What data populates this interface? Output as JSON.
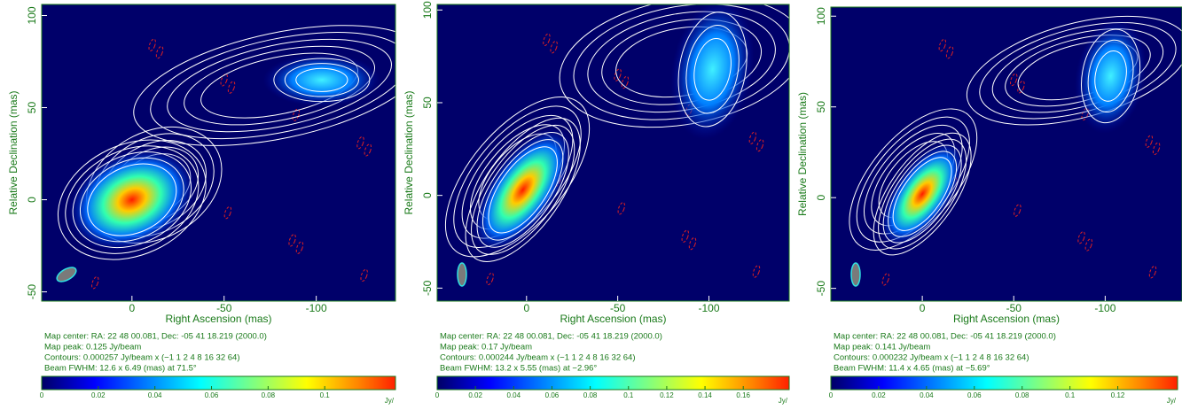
{
  "chart_data": [
    {
      "type": "image",
      "xlabel": "Right Ascension  (mas)",
      "ylabel": "Relative Declination  (mas)",
      "xlim": [
        49,
        -143
      ],
      "ylim": [
        -55,
        106
      ],
      "xticks": [
        0,
        -50,
        -100
      ],
      "yticks": [
        -50,
        0,
        50,
        100
      ],
      "notes": [
        "Map center:  RA: 22 48 00.081,   Dec: -05 41 18.219 (2000.0)",
        "Map peak: 0.125 Jy/beam",
        "Contours: 0.000257 Jy/beam x (−1 1 2 4 8 16 32 64)",
        "Beam FWHM: 12.6 x 6.49 (mas) at 71.5°"
      ],
      "colorbar": {
        "lim": [
          0,
          0.125
        ],
        "ticks": [
          0,
          0.02,
          0.04,
          0.06,
          0.08,
          0.1
        ],
        "label": "Jy/"
      }
    },
    {
      "type": "image",
      "xlabel": "Right Ascension  (mas)",
      "ylabel": "Relative Declination  (mas)",
      "xlim": [
        49,
        -144
      ],
      "ylim": [
        -57,
        103
      ],
      "xticks": [
        0,
        -50,
        -100
      ],
      "yticks": [
        -50,
        0,
        50,
        100
      ],
      "notes": [
        "Map center:  RA: 22 48 00.081,   Dec: -05 41 18.219 (2000.0)",
        "Map peak: 0.17 Jy/beam",
        "Contours: 0.000244 Jy/beam x (−1 1 2 4 8 16 32 64)",
        "Beam FWHM: 13.2 x 5.55 (mas) at −2.96°"
      ],
      "colorbar": {
        "lim": [
          0,
          0.184
        ],
        "ticks": [
          0,
          0.02,
          0.04,
          0.06,
          0.08,
          0.1,
          0.12,
          0.14,
          0.16
        ],
        "label": "Jy/"
      }
    },
    {
      "type": "image",
      "xlabel": "Right Ascension  (mas)",
      "ylabel": "Relative Declination  (mas)",
      "xlim": [
        50,
        -142
      ],
      "ylim": [
        -57,
        105
      ],
      "xticks": [
        0,
        -50,
        -100
      ],
      "yticks": [
        -50,
        0,
        50,
        100
      ],
      "notes": [
        "Map center:  RA: 22 48 00.081,   Dec: -05 41 18.219 (2000.0)",
        "Map peak: 0.141 Jy/beam",
        "Contours: 0.000232 Jy/beam x (−1 1 2 4 8 16 32 64)",
        "Beam FWHM: 11.4 x 4.65 (mas) at −5.69°"
      ],
      "colorbar": {
        "lim": [
          0,
          0.145
        ],
        "ticks": [
          0,
          0.02,
          0.04,
          0.06,
          0.08,
          0.1,
          0.12
        ],
        "label": "Jy/"
      }
    }
  ]
}
